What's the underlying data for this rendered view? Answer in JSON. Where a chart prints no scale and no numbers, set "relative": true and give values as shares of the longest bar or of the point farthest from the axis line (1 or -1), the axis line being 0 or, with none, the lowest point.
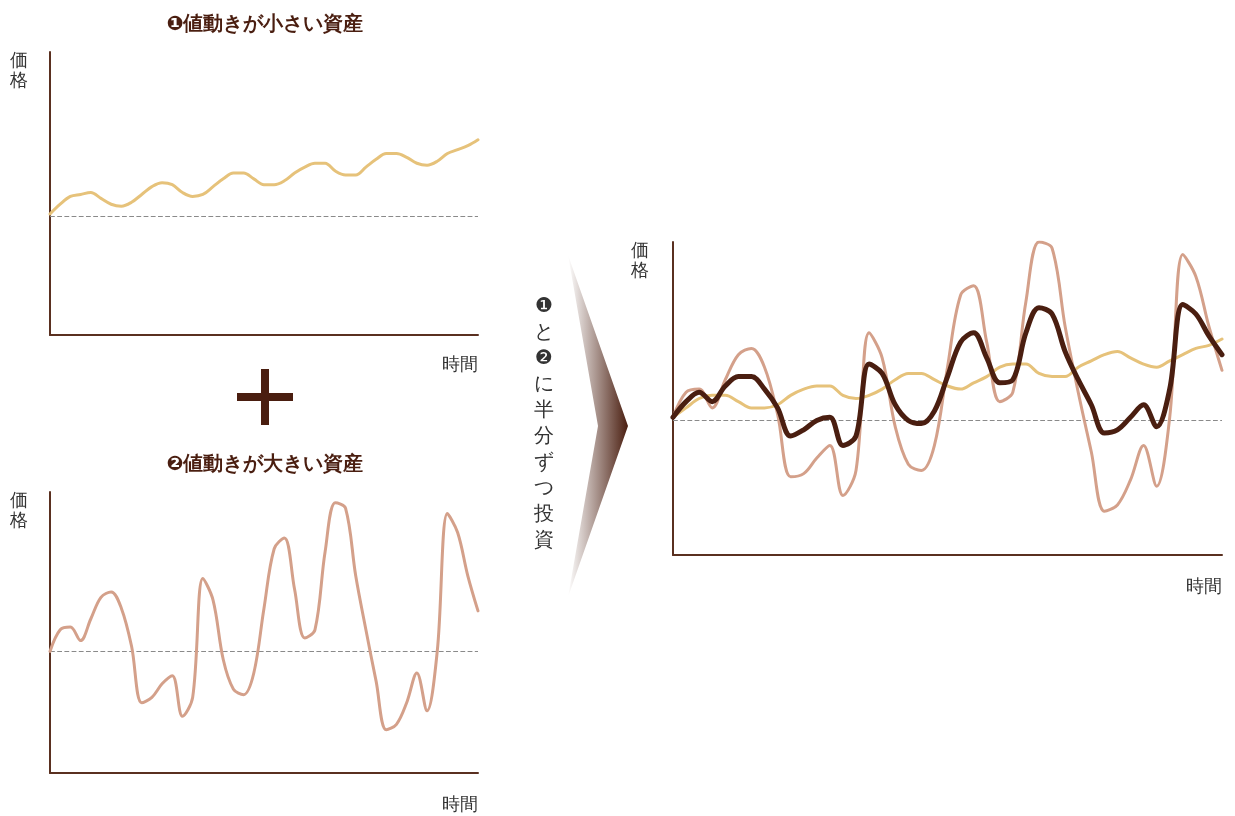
{
  "chart_data": [
    {
      "type": "line",
      "title": "❶値動きが小さい資産",
      "ylabel": "価格",
      "xlabel": "時間",
      "relative": true,
      "marker": "none",
      "categories": [
        null,
        null,
        null,
        null,
        null,
        null,
        null,
        null,
        null,
        null,
        null,
        null,
        null,
        null,
        null,
        null,
        null,
        null,
        null,
        null,
        null,
        null,
        null,
        null,
        null,
        null,
        null,
        null,
        null,
        null,
        null,
        null,
        null,
        null,
        null,
        null,
        null,
        null,
        null,
        null,
        null,
        null,
        null
      ],
      "series": [
        {
          "color": "#e6c27a",
          "values": [
            0.62,
            0.67,
            0.71,
            0.72,
            0.73,
            0.7,
            0.67,
            0.66,
            0.68,
            0.72,
            0.76,
            0.78,
            0.77,
            0.73,
            0.71,
            0.72,
            0.76,
            0.8,
            0.83,
            0.83,
            0.8,
            0.77,
            0.77,
            0.79,
            0.83,
            0.86,
            0.88,
            0.88,
            0.84,
            0.82,
            0.82,
            0.86,
            0.9,
            0.93,
            0.93,
            0.91,
            0.88,
            0.87,
            0.89,
            0.93,
            0.95,
            0.97,
            1
          ]
        }
      ],
      "ref_lines": [
        {
          "axis": "y",
          "value": 0.61,
          "color": "#8a8a8a",
          "line_style": "dashed"
        }
      ]
    },
    {
      "type": "line",
      "title": "❷値動きが大きい資産",
      "ylabel": "価格",
      "xlabel": "時間",
      "relative": true,
      "marker": "none",
      "categories": [
        null,
        null,
        null,
        null,
        null,
        null,
        null,
        null,
        null,
        null,
        null,
        null,
        null,
        null,
        null,
        null,
        null,
        null,
        null,
        null,
        null,
        null,
        null,
        null,
        null,
        null,
        null,
        null,
        null,
        null,
        null,
        null,
        null,
        null,
        null,
        null,
        null,
        null,
        null,
        null,
        null,
        null,
        null
      ],
      "series": [
        {
          "color": "#d4a08a",
          "values": [
            0.45,
            0.53,
            0.54,
            0.49,
            0.57,
            0.65,
            0.67,
            0.61,
            0.47,
            0.26,
            0.28,
            0.33,
            0.36,
            0.21,
            0.28,
            0.72,
            0.64,
            0.42,
            0.31,
            0.29,
            0.37,
            0.61,
            0.83,
            0.87,
            0.68,
            0.5,
            0.53,
            0.82,
            1,
            0.98,
            0.73,
            0.53,
            0.34,
            0.16,
            0.18,
            0.26,
            0.37,
            0.23,
            0.45,
            0.96,
            0.89,
            0.73,
            0.6
          ]
        }
      ],
      "ref_lines": [
        {
          "axis": "y",
          "value": 0.45,
          "color": "#8a8a8a",
          "line_style": "dashed"
        }
      ]
    },
    {
      "type": "line",
      "ylabel": "価格",
      "xlabel": "時間",
      "relative": true,
      "marker": "none",
      "annotations": [
        "❶と❷に半分ずつ投資"
      ],
      "categories": [
        null,
        null,
        null,
        null,
        null,
        null,
        null,
        null,
        null,
        null,
        null,
        null,
        null,
        null,
        null,
        null,
        null,
        null,
        null,
        null,
        null,
        null,
        null,
        null,
        null,
        null,
        null,
        null,
        null,
        null,
        null,
        null,
        null,
        null,
        null,
        null,
        null,
        null,
        null,
        null,
        null,
        null,
        null
      ],
      "series": [
        {
          "color": "#d4a08a",
          "values": [
            0.44,
            0.52,
            0.53,
            0.47,
            0.56,
            0.64,
            0.66,
            0.6,
            0.45,
            0.25,
            0.26,
            0.31,
            0.35,
            0.19,
            0.27,
            0.71,
            0.63,
            0.41,
            0.29,
            0.27,
            0.35,
            0.6,
            0.83,
            0.86,
            0.68,
            0.49,
            0.52,
            0.81,
            1,
            0.98,
            0.73,
            0.52,
            0.33,
            0.14,
            0.16,
            0.24,
            0.35,
            0.22,
            0.44,
            0.96,
            0.89,
            0.73,
            0.59
          ]
        },
        {
          "color": "#e6c27a",
          "values": [
            0.44,
            0.47,
            0.5,
            0.51,
            0.51,
            0.49,
            0.47,
            0.47,
            0.48,
            0.51,
            0.53,
            0.54,
            0.54,
            0.51,
            0.5,
            0.51,
            0.53,
            0.56,
            0.58,
            0.58,
            0.56,
            0.54,
            0.53,
            0.55,
            0.57,
            0.6,
            0.61,
            0.61,
            0.58,
            0.57,
            0.57,
            0.6,
            0.62,
            0.64,
            0.65,
            0.63,
            0.61,
            0.6,
            0.62,
            0.64,
            0.66,
            0.67,
            0.69
          ]
        },
        {
          "color": "#4a1e10",
          "values": [
            0.44,
            0.49,
            0.52,
            0.49,
            0.54,
            0.57,
            0.57,
            0.53,
            0.47,
            0.38,
            0.4,
            0.43,
            0.44,
            0.35,
            0.38,
            0.61,
            0.58,
            0.48,
            0.43,
            0.42,
            0.46,
            0.57,
            0.68,
            0.71,
            0.63,
            0.55,
            0.56,
            0.71,
            0.79,
            0.77,
            0.65,
            0.56,
            0.48,
            0.39,
            0.4,
            0.44,
            0.48,
            0.41,
            0.53,
            0.8,
            0.77,
            0.7,
            0.64
          ]
        }
      ],
      "ref_lines": [
        {
          "axis": "y",
          "value": 0.43,
          "color": "#8a8a8a",
          "line_style": "dashed"
        }
      ]
    }
  ]
}
